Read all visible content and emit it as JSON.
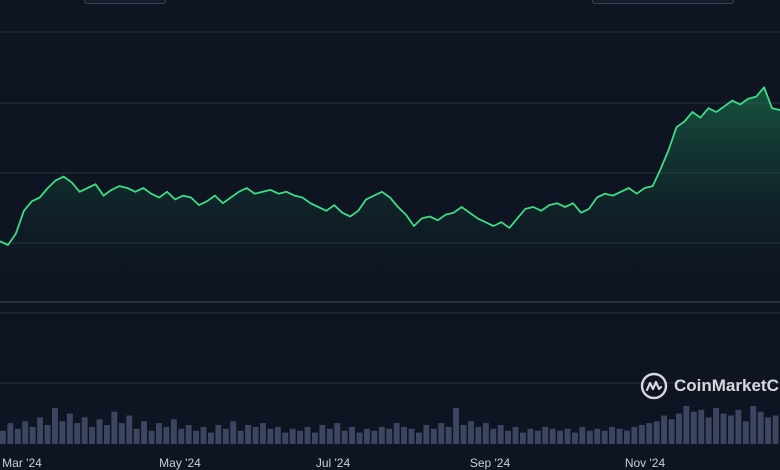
{
  "chart_data": {
    "type": "area",
    "title": "",
    "xlabel": "",
    "ylabel": "",
    "x_tick_labels": [
      "Mar '24",
      "May '24",
      "Jul '24",
      "Sep '24",
      "Nov '24"
    ],
    "grid": true,
    "series": [
      {
        "values": [
          0.32,
          0.3,
          0.36,
          0.48,
          0.53,
          0.55,
          0.6,
          0.64,
          0.66,
          0.63,
          0.58,
          0.6,
          0.62,
          0.56,
          0.59,
          0.61,
          0.6,
          0.58,
          0.6,
          0.57,
          0.55,
          0.58,
          0.54,
          0.56,
          0.55,
          0.51,
          0.53,
          0.56,
          0.52,
          0.55,
          0.58,
          0.6,
          0.57,
          0.58,
          0.59,
          0.57,
          0.58,
          0.56,
          0.55,
          0.52,
          0.5,
          0.48,
          0.51,
          0.47,
          0.45,
          0.48,
          0.54,
          0.56,
          0.58,
          0.55,
          0.5,
          0.46,
          0.4,
          0.44,
          0.45,
          0.43,
          0.46,
          0.47,
          0.5,
          0.47,
          0.44,
          0.42,
          0.4,
          0.42,
          0.39,
          0.44,
          0.49,
          0.5,
          0.48,
          0.51,
          0.52,
          0.5,
          0.52,
          0.47,
          0.49,
          0.55,
          0.57,
          0.56,
          0.58,
          0.6,
          0.57,
          0.6,
          0.61,
          0.7,
          0.8,
          0.92,
          0.95,
          1.0,
          0.97,
          1.02,
          1.0,
          1.03,
          1.06,
          1.04,
          1.07,
          1.08,
          1.13,
          1.02,
          1.01
        ]
      }
    ],
    "volume": [
      0.35,
      0.55,
      0.4,
      0.6,
      0.45,
      0.7,
      0.5,
      0.95,
      0.6,
      0.8,
      0.55,
      0.7,
      0.45,
      0.65,
      0.5,
      0.85,
      0.55,
      0.75,
      0.4,
      0.6,
      0.35,
      0.55,
      0.45,
      0.65,
      0.4,
      0.5,
      0.35,
      0.45,
      0.3,
      0.5,
      0.4,
      0.6,
      0.35,
      0.5,
      0.45,
      0.55,
      0.4,
      0.45,
      0.3,
      0.4,
      0.35,
      0.45,
      0.3,
      0.5,
      0.4,
      0.55,
      0.35,
      0.45,
      0.3,
      0.4,
      0.35,
      0.45,
      0.4,
      0.55,
      0.45,
      0.4,
      0.3,
      0.5,
      0.4,
      0.55,
      0.45,
      0.95,
      0.5,
      0.6,
      0.45,
      0.55,
      0.4,
      0.5,
      0.35,
      0.45,
      0.3,
      0.4,
      0.35,
      0.45,
      0.4,
      0.35,
      0.4,
      0.3,
      0.45,
      0.35,
      0.4,
      0.35,
      0.45,
      0.4,
      0.35,
      0.45,
      0.5,
      0.55,
      0.6,
      0.75,
      0.65,
      0.8,
      1.0,
      0.85,
      0.9,
      0.7,
      0.95,
      0.8,
      0.75,
      0.9,
      0.6,
      1.0,
      0.85,
      0.7,
      0.75
    ]
  },
  "watermark": {
    "text": "CoinMarketC",
    "icon": "coinmarketcap-logo-icon"
  },
  "colors": {
    "background": "#0e1421",
    "line": "#3ddc84",
    "grid": "#2a3140",
    "volume": "#3d4660",
    "axis_label": "#c9ced8"
  }
}
